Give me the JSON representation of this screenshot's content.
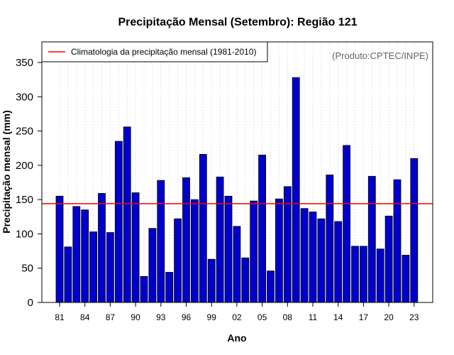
{
  "chart_data": {
    "type": "bar",
    "title": "Precipitação Mensal (Setembro): Região 121",
    "xlabel": "Ano",
    "ylabel": "Precipitação mensal (mm)",
    "credit": "(Produto:CPTEC/INPE)",
    "ylim": [
      0,
      380
    ],
    "yticks": [
      0,
      50,
      100,
      150,
      200,
      250,
      300,
      350
    ],
    "xtick_labels": [
      "81",
      "84",
      "87",
      "90",
      "93",
      "96",
      "99",
      "02",
      "05",
      "08",
      "11",
      "14",
      "17",
      "20",
      "23"
    ],
    "xtick_every": 3,
    "categories": [
      "1981",
      "1982",
      "1983",
      "1984",
      "1985",
      "1986",
      "1987",
      "1988",
      "1989",
      "1990",
      "1991",
      "1992",
      "1993",
      "1994",
      "1995",
      "1996",
      "1997",
      "1998",
      "1999",
      "2000",
      "2001",
      "2002",
      "2003",
      "2004",
      "2005",
      "2006",
      "2007",
      "2008",
      "2009",
      "2010",
      "2011",
      "2012",
      "2013",
      "2014",
      "2015",
      "2016",
      "2017",
      "2018",
      "2019",
      "2020",
      "2021",
      "2022",
      "2023"
    ],
    "values": [
      155,
      81,
      140,
      135,
      103,
      159,
      102,
      235,
      256,
      160,
      38,
      108,
      178,
      44,
      122,
      182,
      150,
      216,
      63,
      183,
      155,
      111,
      65,
      148,
      215,
      46,
      151,
      169,
      328,
      137,
      132,
      122,
      186,
      118,
      229,
      82,
      82,
      184,
      78,
      126,
      179,
      69,
      210
    ],
    "climatology": {
      "value": 144,
      "label": "Climatologia da precipitação mensal (1981-2010)",
      "color": "#ff0000"
    },
    "bar_color": "#0000cc",
    "grid": "vertical dotted",
    "legend_position": "top-left"
  }
}
